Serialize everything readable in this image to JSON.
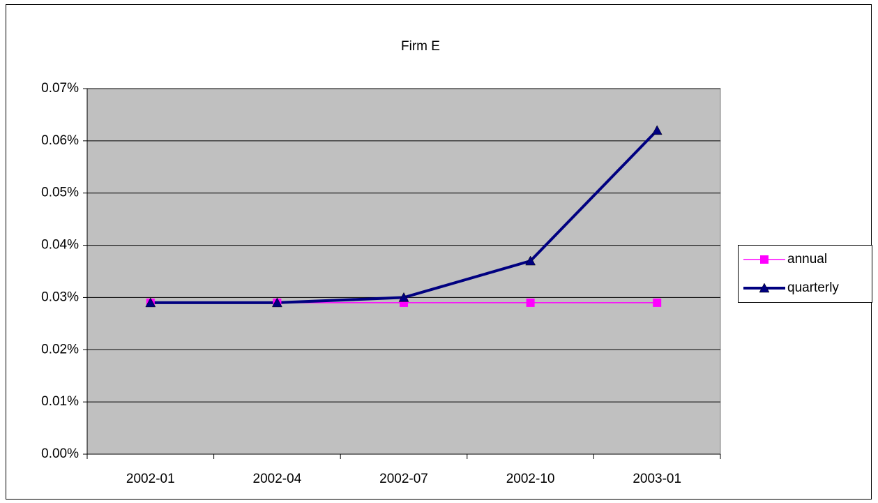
{
  "chart_data": {
    "type": "line",
    "title": "Firm E",
    "categories": [
      "2002-01",
      "2002-04",
      "2002-07",
      "2002-10",
      "2003-01"
    ],
    "series": [
      {
        "name": "annual",
        "color": "#ff00ff",
        "marker": "square",
        "values": [
          0.029,
          0.029,
          0.029,
          0.029,
          0.029
        ]
      },
      {
        "name": "quarterly",
        "color": "#000080",
        "marker": "triangle",
        "values": [
          0.029,
          0.029,
          0.03,
          0.037,
          0.062
        ]
      }
    ],
    "ylim": [
      0,
      0.07
    ],
    "yticks": [
      {
        "value": 0,
        "label": "0.00%"
      },
      {
        "value": 0.01,
        "label": "0.01%"
      },
      {
        "value": 0.02,
        "label": "0.02%"
      },
      {
        "value": 0.03,
        "label": "0.03%"
      },
      {
        "value": 0.04,
        "label": "0.04%"
      },
      {
        "value": 0.05,
        "label": "0.05%"
      },
      {
        "value": 0.06,
        "label": "0.06%"
      },
      {
        "value": 0.07,
        "label": "0.07%"
      }
    ],
    "grid": true,
    "legend": "right",
    "plot_background": "#c0c0c0"
  }
}
